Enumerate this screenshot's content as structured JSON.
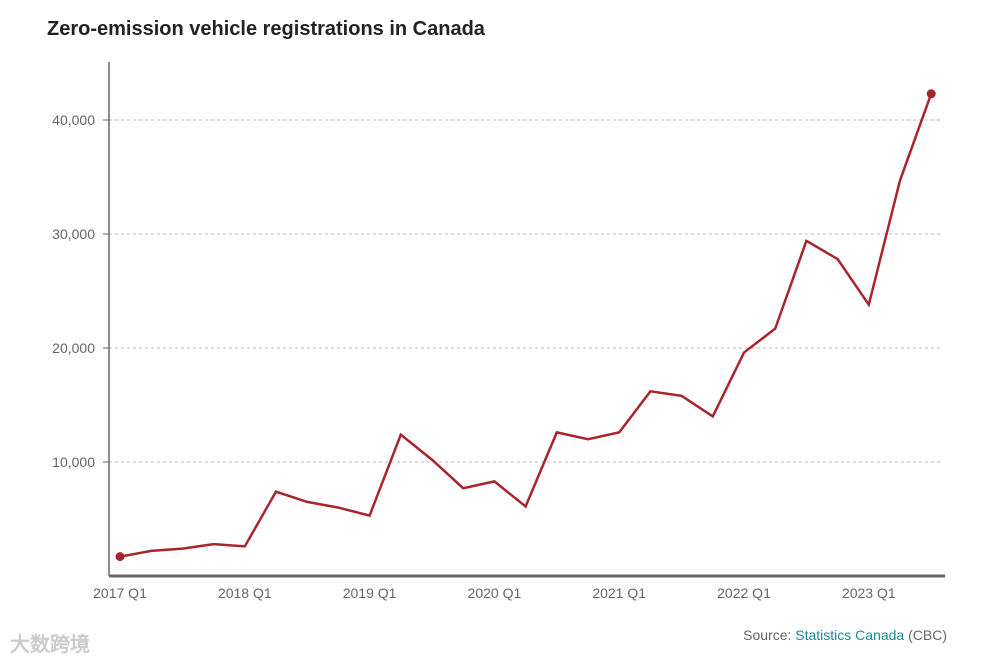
{
  "title": "Zero-emission vehicle registrations in Canada",
  "source": {
    "prefix": "Source: ",
    "link": "Statistics Canada",
    "suffix": " (CBC)"
  },
  "watermark": "大数跨境",
  "colors": {
    "line": "#a8252e",
    "grid": "#bbbbbb",
    "axis": "#666666",
    "link": "#1a8aa0"
  },
  "chart_data": {
    "type": "line",
    "title": "Zero-emission vehicle registrations in Canada",
    "xlabel": "",
    "ylabel": "",
    "x": [
      "2017 Q1",
      "2017 Q2",
      "2017 Q3",
      "2017 Q4",
      "2018 Q1",
      "2018 Q2",
      "2018 Q3",
      "2018 Q4",
      "2019 Q1",
      "2019 Q2",
      "2019 Q3",
      "2019 Q4",
      "2020 Q1",
      "2020 Q2",
      "2020 Q3",
      "2020 Q4",
      "2021 Q1",
      "2021 Q2",
      "2021 Q3",
      "2021 Q4",
      "2022 Q1",
      "2022 Q2",
      "2022 Q3",
      "2022 Q4",
      "2023 Q1",
      "2023 Q2",
      "2023 Q3"
    ],
    "series": [
      {
        "name": "Registrations",
        "values": [
          1700,
          2200,
          2400,
          2800,
          2600,
          7400,
          6500,
          6000,
          5300,
          12400,
          10200,
          7700,
          8300,
          6100,
          12600,
          12000,
          12600,
          16200,
          15800,
          14000,
          19600,
          21700,
          29400,
          27800,
          23800,
          34700,
          42300
        ]
      }
    ],
    "x_tick_labels": [
      "2017 Q1",
      "2018 Q1",
      "2019 Q1",
      "2020 Q1",
      "2021 Q1",
      "2022 Q1",
      "2023 Q1"
    ],
    "y_ticks": [
      10000,
      20000,
      30000,
      40000
    ],
    "y_tick_labels": [
      "10,000",
      "20,000",
      "30,000",
      "40,000"
    ],
    "ylim": [
      0,
      45000
    ],
    "grid": true,
    "endpoint_markers": true
  }
}
